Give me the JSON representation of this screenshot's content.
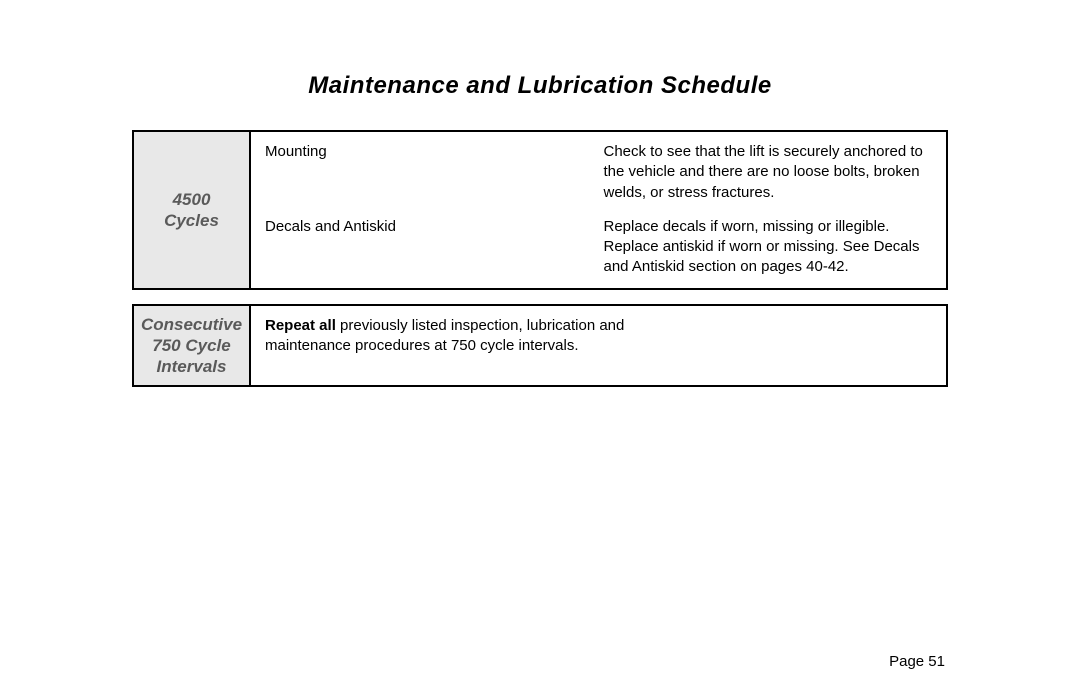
{
  "title": "Maintenance and Lubrication Schedule",
  "section1": {
    "header": "4500\nCycles",
    "rows": [
      {
        "label": "Mounting",
        "desc": "Check to see that the lift is securely anchored to the vehicle and there are no loose bolts, broken welds, or stress fractures."
      },
      {
        "label": "Decals and Antiskid",
        "desc": "Replace decals if worn, missing or illegible.  Replace antiskid if worn or missing.  See Decals and Antiskid section on pages 40-42."
      }
    ]
  },
  "section2": {
    "header": "Consecutive 750 Cycle Intervals",
    "bold_lead": "Repeat all",
    "text_rest": " previously listed inspection, lubrication and maintenance procedures at 750 cycle intervals."
  },
  "page_number": "Page 51",
  "colors": {
    "header_bg": "#e8e8e8",
    "header_text": "#5a5a5a",
    "border": "#000000",
    "text": "#000000",
    "background": "#ffffff"
  },
  "typography": {
    "title_fontsize": 24,
    "header_fontsize": 17,
    "body_fontsize": 15,
    "page_number_fontsize": 15
  }
}
